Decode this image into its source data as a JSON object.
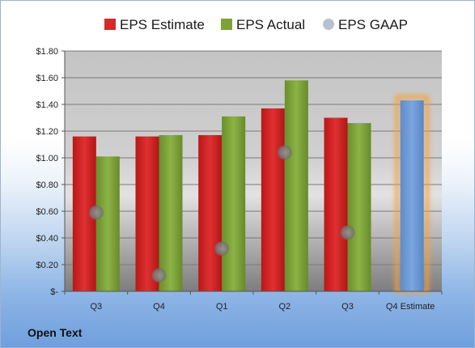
{
  "company": "Open Text",
  "chart_data": {
    "type": "bar",
    "categories": [
      "Q3",
      "Q4",
      "Q1",
      "Q2",
      "Q3",
      "Q4 Estimate"
    ],
    "series": [
      {
        "name": "EPS Estimate",
        "color": "#d42a2a",
        "values": [
          1.16,
          1.16,
          1.17,
          1.37,
          1.3,
          null
        ]
      },
      {
        "name": "EPS Actual",
        "color": "#7ea23a",
        "values": [
          1.01,
          1.17,
          1.31,
          1.58,
          1.26,
          null
        ]
      },
      {
        "name": "EPS GAAP",
        "color": "#a9b7c8",
        "marker": "circle",
        "values": [
          0.59,
          0.12,
          0.32,
          1.04,
          0.44,
          null
        ]
      }
    ],
    "forecast": {
      "category": "Q4 Estimate",
      "value": 1.43,
      "color": "#6f9ad6",
      "glow": "#f5a03c"
    },
    "y_ticks": [
      "$-",
      "$0.20",
      "$0.40",
      "$0.60",
      "$0.80",
      "$1.00",
      "$1.20",
      "$1.40",
      "$1.60",
      "$1.80"
    ],
    "ylim": [
      0,
      1.8
    ],
    "grid": true,
    "legend": "top"
  }
}
